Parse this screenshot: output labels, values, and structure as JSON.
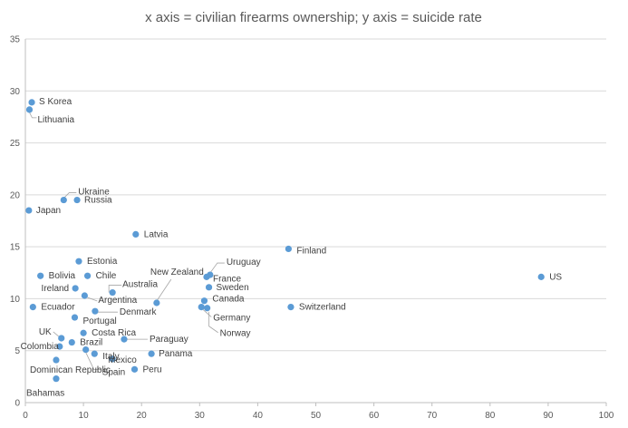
{
  "chart_data": {
    "type": "scatter",
    "title": "x axis = civilian firearms ownership; y axis = suicide rate",
    "xlabel": "",
    "ylabel": "",
    "xlim": [
      0,
      100
    ],
    "ylim": [
      0,
      35
    ],
    "x_ticks": [
      "0",
      "10",
      "20",
      "30",
      "40",
      "50",
      "60",
      "70",
      "80",
      "90",
      "100"
    ],
    "y_ticks": [
      "0",
      "5",
      "10",
      "15",
      "20",
      "25",
      "30",
      "35"
    ],
    "grid": "horizontal",
    "marker_color": "#5b9bd5",
    "points": [
      {
        "label": "S Korea",
        "x": 1.1,
        "y": 28.9
      },
      {
        "label": "Lithuania",
        "x": 0.7,
        "y": 28.2
      },
      {
        "label": "Ukraine",
        "x": 6.6,
        "y": 19.5
      },
      {
        "label": "Russia",
        "x": 8.9,
        "y": 19.5
      },
      {
        "label": "Japan",
        "x": 0.6,
        "y": 18.5
      },
      {
        "label": "Latvia",
        "x": 19.0,
        "y": 16.2
      },
      {
        "label": "Finland",
        "x": 45.3,
        "y": 14.8
      },
      {
        "label": "Estonia",
        "x": 9.2,
        "y": 13.6
      },
      {
        "label": "Uruguay",
        "x": 31.8,
        "y": 12.3
      },
      {
        "label": "Bolivia",
        "x": 2.6,
        "y": 12.2
      },
      {
        "label": "Chile",
        "x": 10.7,
        "y": 12.2
      },
      {
        "label": "France",
        "x": 31.2,
        "y": 12.1
      },
      {
        "label": "US",
        "x": 88.8,
        "y": 12.1
      },
      {
        "label": "New Zealand",
        "x": 22.6,
        "y": 9.6
      },
      {
        "label": "Ireland",
        "x": 8.6,
        "y": 11.0
      },
      {
        "label": "Sweden",
        "x": 31.6,
        "y": 11.1
      },
      {
        "label": "Australia",
        "x": 15.0,
        "y": 10.6
      },
      {
        "label": "Argentina",
        "x": 10.2,
        "y": 10.3
      },
      {
        "label": "Canada",
        "x": 30.8,
        "y": 9.8
      },
      {
        "label": "Ecuador",
        "x": 1.3,
        "y": 9.2
      },
      {
        "label": "Switzerland",
        "x": 45.7,
        "y": 9.2
      },
      {
        "label": "Germany",
        "x": 30.3,
        "y": 9.2
      },
      {
        "label": "Norway",
        "x": 31.3,
        "y": 9.1
      },
      {
        "label": "Denmark",
        "x": 12.0,
        "y": 8.8
      },
      {
        "label": "Portugal",
        "x": 8.5,
        "y": 8.2
      },
      {
        "label": "Costa Rica",
        "x": 10.0,
        "y": 6.7
      },
      {
        "label": "UK",
        "x": 6.2,
        "y": 6.2
      },
      {
        "label": "Paraguay",
        "x": 17.0,
        "y": 6.1
      },
      {
        "label": "Brazil",
        "x": 8.0,
        "y": 5.8
      },
      {
        "label": "Colombia",
        "x": 5.9,
        "y": 5.4
      },
      {
        "label": "Italy",
        "x": 11.9,
        "y": 4.7
      },
      {
        "label": "Panama",
        "x": 21.7,
        "y": 4.7
      },
      {
        "label": "Mexico",
        "x": 15.0,
        "y": 4.2
      },
      {
        "label": "Dominican Republic",
        "x": 5.3,
        "y": 4.1
      },
      {
        "label": "Peru",
        "x": 18.8,
        "y": 3.2
      },
      {
        "label": "Spain",
        "x": 10.4,
        "y": 5.1
      },
      {
        "label": "Bahamas",
        "x": 5.3,
        "y": 2.3
      }
    ]
  }
}
